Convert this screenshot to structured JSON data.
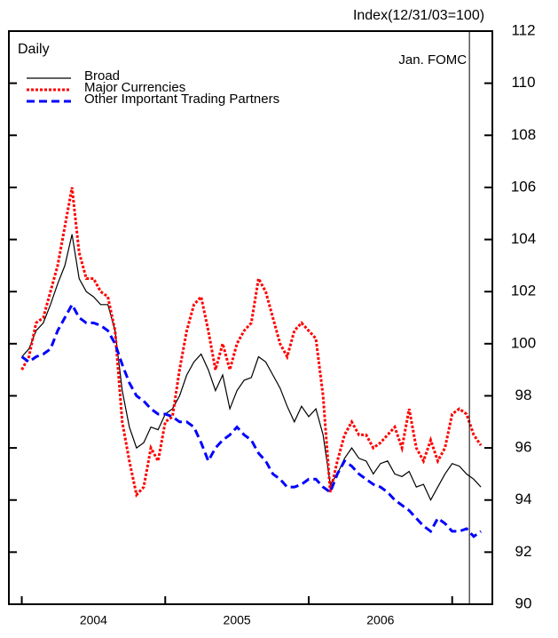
{
  "chart_data": {
    "type": "line",
    "ylabel": "Index(12/31/03=100)",
    "subtitle": "Daily",
    "x": [
      2004.0,
      2004.05,
      2004.1,
      2004.15,
      2004.2,
      2004.25,
      2004.3,
      2004.35,
      2004.4,
      2004.45,
      2004.5,
      2004.55,
      2004.6,
      2004.65,
      2004.7,
      2004.75,
      2004.8,
      2004.85,
      2004.9,
      2004.95,
      2005.0,
      2005.05,
      2005.1,
      2005.15,
      2005.2,
      2005.25,
      2005.3,
      2005.35,
      2005.4,
      2005.45,
      2005.5,
      2005.55,
      2005.6,
      2005.65,
      2005.7,
      2005.75,
      2005.8,
      2005.85,
      2005.9,
      2005.95,
      2006.0,
      2006.05,
      2006.1,
      2006.15,
      2006.2,
      2006.25,
      2006.3,
      2006.35,
      2006.4,
      2006.45,
      2006.5,
      2006.55,
      2006.6,
      2006.65,
      2006.7,
      2006.75,
      2006.8,
      2006.85,
      2006.9,
      2006.95,
      2007.0,
      2007.05,
      2007.1,
      2007.15,
      2007.2
    ],
    "series": [
      {
        "name": "Broad",
        "color": "#000000",
        "dash": "solid",
        "values": [
          99.5,
          99.8,
          100.5,
          100.8,
          101.5,
          102.3,
          103.0,
          104.2,
          102.5,
          102.0,
          101.8,
          101.5,
          101.5,
          100.5,
          98.2,
          96.8,
          96.0,
          96.2,
          96.8,
          96.7,
          97.3,
          97.5,
          98.0,
          98.8,
          99.3,
          99.6,
          99.0,
          98.2,
          98.8,
          97.5,
          98.2,
          98.6,
          98.7,
          99.5,
          99.3,
          98.8,
          98.3,
          97.6,
          97.0,
          97.6,
          97.2,
          97.5,
          96.5,
          94.6,
          95.0,
          95.6,
          96.0,
          95.6,
          95.5,
          95.0,
          95.4,
          95.5,
          95.0,
          94.9,
          95.1,
          94.5,
          94.6,
          94.0,
          94.5,
          95.0,
          95.4,
          95.3,
          95.0,
          94.8,
          94.5
        ]
      },
      {
        "name": "Major Currencies",
        "color": "#ff0000",
        "dash": "dotted",
        "values": [
          99.0,
          99.5,
          100.8,
          101.0,
          102.0,
          103.0,
          104.5,
          106.0,
          103.5,
          102.5,
          102.5,
          102.0,
          101.8,
          100.5,
          97.0,
          95.5,
          94.2,
          94.5,
          96.0,
          95.5,
          97.0,
          97.2,
          99.0,
          100.5,
          101.5,
          101.8,
          100.5,
          99.0,
          100.0,
          99.0,
          100.0,
          100.5,
          100.8,
          102.5,
          102.0,
          101.0,
          100.0,
          99.5,
          100.5,
          100.8,
          100.5,
          100.2,
          98.0,
          94.3,
          95.5,
          96.5,
          97.0,
          96.5,
          96.5,
          96.0,
          96.2,
          96.5,
          96.8,
          96.0,
          97.5,
          96.0,
          95.5,
          96.3,
          95.5,
          96.0,
          97.3,
          97.5,
          97.3,
          96.5,
          96.1
        ]
      },
      {
        "name": "Other Important Trading Partners",
        "color": "#0000ff",
        "dash": "dashed",
        "values": [
          99.5,
          99.3,
          99.5,
          99.6,
          99.8,
          100.5,
          101.0,
          101.5,
          101.0,
          100.8,
          100.8,
          100.7,
          100.5,
          100.0,
          99.2,
          98.5,
          98.0,
          97.8,
          97.5,
          97.3,
          97.3,
          97.2,
          97.0,
          97.0,
          96.8,
          96.2,
          95.5,
          96.0,
          96.3,
          96.5,
          96.8,
          96.5,
          96.3,
          95.8,
          95.5,
          95.0,
          94.8,
          94.5,
          94.5,
          94.6,
          94.8,
          94.8,
          94.5,
          94.3,
          95.0,
          95.5,
          95.3,
          95.0,
          94.8,
          94.6,
          94.5,
          94.3,
          94.0,
          93.8,
          93.6,
          93.3,
          93.0,
          92.8,
          93.3,
          93.1,
          92.8,
          92.8,
          92.9,
          92.6,
          92.8
        ]
      }
    ],
    "xlim": [
      2003.91,
      2007.28
    ],
    "xticks": [
      {
        "value": 2004.5,
        "label": "2004"
      },
      {
        "value": 2005.5,
        "label": "2005"
      },
      {
        "value": 2006.5,
        "label": "2006"
      }
    ],
    "ylim": [
      90,
      112
    ],
    "yticks": [
      90,
      92,
      94,
      96,
      98,
      100,
      102,
      104,
      106,
      108,
      110,
      112
    ],
    "annotations": [
      {
        "text": "Jan. FOMC",
        "x": 2007.12
      }
    ],
    "legend": "upper left"
  }
}
